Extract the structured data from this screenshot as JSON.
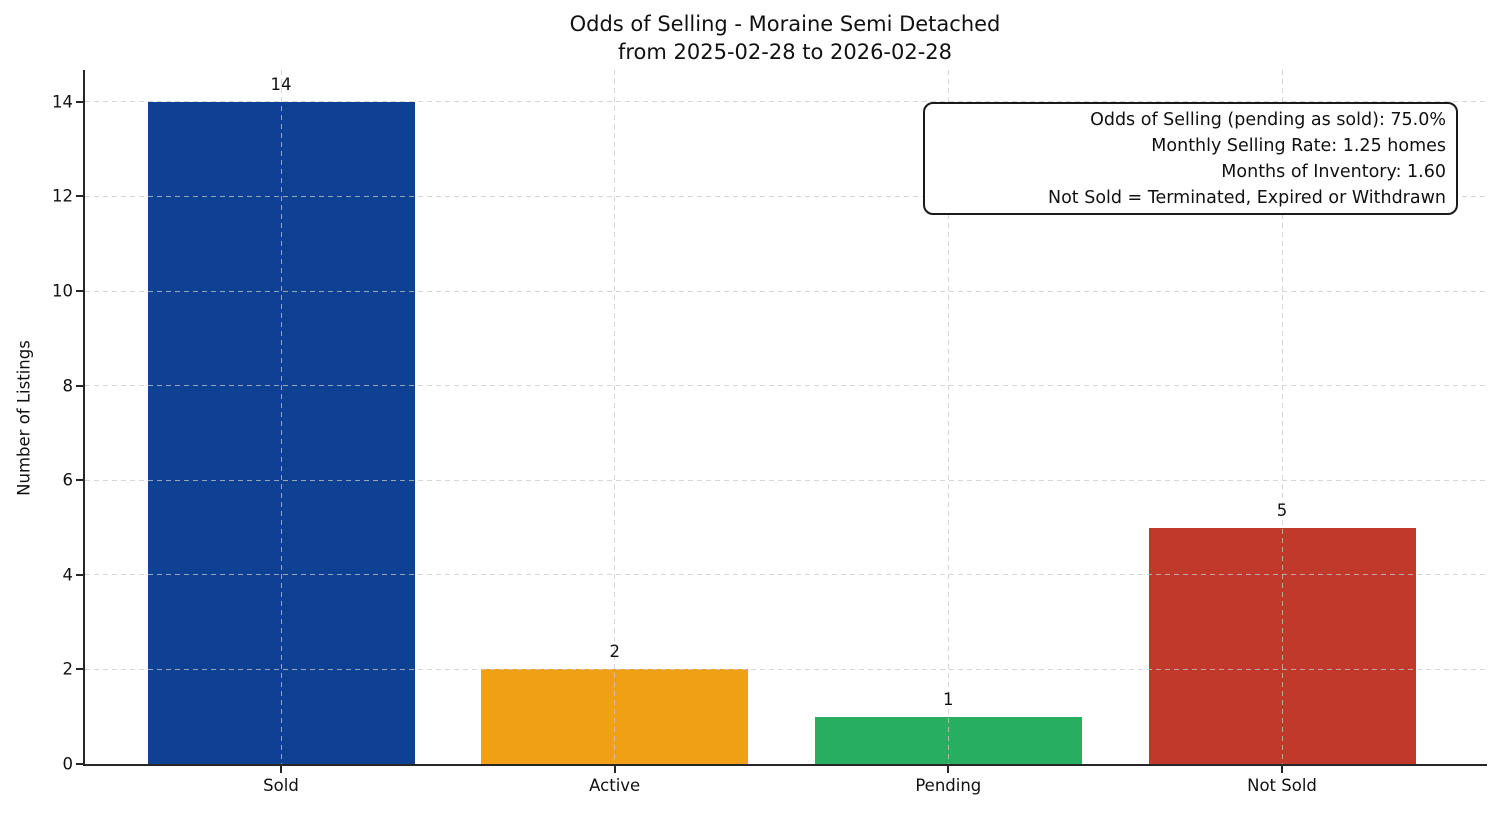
{
  "chart_data": {
    "type": "bar",
    "title": "Odds of Selling - Moraine Semi Detached",
    "subtitle": "from 2025-02-28 to 2026-02-28",
    "categories": [
      "Sold",
      "Active",
      "Pending",
      "Not Sold"
    ],
    "values": [
      14,
      2,
      1,
      5
    ],
    "bar_value_labels": [
      "14",
      "2",
      "1",
      "5"
    ],
    "bar_colors": [
      "#0e4094",
      "#f0a014",
      "#27ae60",
      "#c0392b"
    ],
    "xlabel": "",
    "ylabel": "Number of Listings",
    "yticks": [
      0,
      2,
      4,
      6,
      8,
      10,
      12,
      14
    ],
    "ylim": [
      0,
      14.7
    ],
    "grid": "dashed light-gray, horizontal and vertical, drawn over bars",
    "legend_position": "none",
    "annotation_box": {
      "lines": [
        "Odds of Selling (pending as sold): 75.0%",
        "Monthly Selling Rate: 1.25 homes",
        "Months of Inventory: 1.60",
        "Not Sold = Terminated, Expired or Withdrawn"
      ]
    }
  },
  "colors": {
    "background": "#ffffff",
    "text": "#111111",
    "spine": "#262626",
    "grid": "#c8c8c8",
    "annotation_border": "#1a1a1a"
  }
}
